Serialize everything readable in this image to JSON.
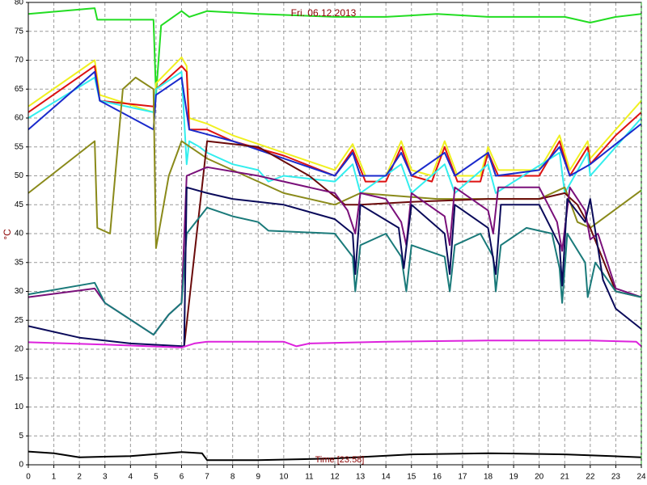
{
  "chart_data": {
    "type": "line",
    "title": "Fri. 06.12.2013",
    "y_label": "°C",
    "annotation": "Time [23:58]",
    "xlim": [
      0,
      24
    ],
    "ylim": [
      0,
      80
    ],
    "xticks": [
      0,
      1,
      2,
      3,
      4,
      5,
      6,
      7,
      8,
      9,
      10,
      11,
      12,
      13,
      14,
      15,
      16,
      17,
      18,
      19,
      20,
      21,
      22,
      23,
      24
    ],
    "yticks": [
      0,
      5,
      10,
      15,
      20,
      25,
      30,
      35,
      40,
      45,
      50,
      55,
      60,
      65,
      70,
      75,
      80
    ],
    "grid": true,
    "series": [
      {
        "color": "#22dd22",
        "x": [
          0,
          2.6,
          2.7,
          4.9,
          5.0,
          5.2,
          6.0,
          6.3,
          7,
          9,
          12,
          14,
          16,
          18,
          21,
          22,
          23,
          24
        ],
        "values": [
          78,
          79,
          77,
          77,
          64,
          76,
          78.5,
          77.5,
          78.5,
          78,
          77.5,
          77.5,
          78,
          77.5,
          77.5,
          76.5,
          77.5,
          78
        ]
      },
      {
        "color": "#f0f020",
        "x": [
          0,
          2.6,
          2.8,
          4.9,
          5.0,
          6.0,
          6.2,
          6.3,
          7,
          8,
          10,
          12,
          12.7,
          13.2,
          14,
          14.6,
          15,
          15.8,
          16.3,
          16.8,
          17.7,
          18,
          18.4,
          20,
          20.8,
          21.2,
          21.9,
          22,
          23,
          24
        ],
        "values": [
          62,
          70,
          64,
          61,
          66,
          70.5,
          69,
          60,
          59,
          57,
          54,
          51,
          55.5,
          50,
          50,
          56,
          51,
          50,
          56,
          50,
          50,
          55,
          51,
          51,
          57,
          51,
          56,
          53,
          58,
          63
        ]
      },
      {
        "color": "#dd1111",
        "x": [
          0,
          2.6,
          2.8,
          4.9,
          5.0,
          6.0,
          6.2,
          6.3,
          7,
          8,
          10,
          12,
          12.7,
          13.2,
          14,
          14.6,
          15,
          15.8,
          16.3,
          16.8,
          17.7,
          18,
          18.4,
          20,
          20.8,
          21.2,
          21.9,
          22,
          23,
          24
        ],
        "values": [
          61,
          69,
          63,
          62,
          65,
          69,
          68,
          58,
          58,
          56,
          53.5,
          50,
          54.5,
          49,
          49,
          55,
          50,
          49,
          55,
          49,
          49,
          54,
          50,
          50,
          56,
          50,
          55,
          52,
          57,
          61
        ]
      },
      {
        "color": "#33eeee",
        "x": [
          0,
          2.6,
          2.8,
          4.9,
          5.0,
          6.0,
          6.2,
          6.3,
          6.7,
          7,
          8,
          9,
          9.4,
          10,
          12,
          12.7,
          13,
          14.6,
          15,
          16.3,
          16.7,
          18,
          18.3,
          20.8,
          21,
          21.9,
          22,
          24
        ],
        "values": [
          60,
          67,
          63,
          61,
          65,
          68,
          52,
          56,
          55,
          54,
          52,
          51,
          49,
          50,
          49,
          52,
          47,
          52,
          47,
          52,
          47,
          52,
          47,
          54,
          47,
          54,
          50,
          60
        ]
      },
      {
        "color": "#1a2acc",
        "x": [
          0,
          2.6,
          2.8,
          4.9,
          5.0,
          6.0,
          6.3,
          8,
          10,
          12,
          12.7,
          13,
          14,
          14.6,
          15,
          16.3,
          16.7,
          18,
          18.3,
          20,
          20.8,
          21.2,
          22,
          24
        ],
        "values": [
          58,
          68,
          63,
          58,
          64,
          67,
          58,
          56,
          53,
          50,
          54,
          50,
          50,
          54,
          50,
          54,
          50,
          54,
          50,
          51,
          55,
          50,
          52,
          59
        ]
      },
      {
        "color": "#8a8a1a",
        "x": [
          0,
          2.6,
          2.7,
          3.2,
          3.7,
          4.2,
          4.9,
          5.0,
          5.5,
          6.0,
          7,
          10,
          12,
          13,
          16,
          20,
          21,
          21.5,
          22,
          24
        ],
        "values": [
          47,
          56,
          41,
          40,
          65,
          67,
          65,
          37.5,
          50,
          56,
          53,
          47,
          45,
          47,
          46,
          46,
          48,
          42,
          41,
          47.5
        ]
      },
      {
        "color": "#6a0a0a",
        "x": [
          6.1,
          7,
          9,
          11,
          12.4,
          13,
          15,
          18,
          20,
          21,
          21.5,
          22,
          23,
          24
        ],
        "values": [
          20.5,
          56,
          55,
          50,
          45,
          45,
          45.5,
          46,
          46,
          47,
          45,
          41,
          30,
          29
        ]
      },
      {
        "color": "#7a107a",
        "x": [
          0,
          2.6,
          3,
          4.9,
          5.5,
          6.0,
          6.2,
          7,
          9,
          11,
          12,
          12.5,
          12.8,
          13,
          14,
          14.6,
          14.8,
          15,
          16.3,
          16.5,
          16.7,
          18,
          18.2,
          18.4,
          20,
          20.7,
          20.9,
          21.2,
          21.8,
          22.0,
          22.3,
          23,
          24
        ],
        "values": [
          29,
          30.5,
          28,
          22.5,
          26,
          28,
          50,
          51.5,
          50,
          48,
          47,
          44,
          40,
          47,
          46,
          42,
          38,
          47,
          43,
          38,
          48,
          44,
          40,
          48,
          48,
          42,
          37,
          48,
          44,
          39,
          40,
          30.5,
          29
        ]
      },
      {
        "color": "#1a7a7a",
        "x": [
          0,
          2.6,
          3,
          4.9,
          5.5,
          6.0,
          6.2,
          7,
          8,
          9,
          9.4,
          12,
          12.7,
          12.8,
          13,
          14,
          14.6,
          14.8,
          15,
          16.3,
          16.5,
          16.7,
          17.7,
          18.2,
          18.3,
          18.5,
          19.5,
          20.5,
          20.8,
          20.9,
          21.1,
          21.8,
          21.9,
          22.2,
          23,
          24
        ],
        "values": [
          29.5,
          31.5,
          28,
          22.5,
          26,
          28,
          40,
          44.5,
          43,
          42,
          40.5,
          40,
          36,
          30,
          38,
          40,
          36,
          30,
          38,
          36,
          30,
          38,
          40,
          36,
          30,
          38,
          41,
          40,
          34,
          28,
          40,
          35,
          29,
          35,
          30,
          29
        ]
      },
      {
        "color": "#0a0a5a",
        "x": [
          0,
          2,
          4,
          6.1,
          6.2,
          7,
          8,
          10,
          12,
          12.7,
          12.8,
          13,
          14.5,
          14.7,
          15,
          16.3,
          16.5,
          16.7,
          18,
          18.3,
          18.5,
          20,
          20.8,
          20.9,
          21.1,
          21.8,
          22,
          22.5,
          23,
          24
        ],
        "values": [
          24,
          22,
          21,
          20.5,
          48,
          47,
          46,
          45,
          42.5,
          40,
          33,
          45,
          41,
          34,
          45,
          40,
          33,
          45,
          41,
          33,
          45,
          45,
          38,
          31,
          46,
          42,
          46,
          32,
          27,
          23.5
        ]
      },
      {
        "color": "#dd22dd",
        "x": [
          0,
          3,
          6,
          6.5,
          7,
          10,
          10.5,
          11,
          14,
          18,
          22,
          23.8,
          24
        ],
        "values": [
          21.2,
          20.8,
          20.3,
          21,
          21.3,
          21.3,
          20.5,
          21,
          21.3,
          21.5,
          21.5,
          21.3,
          20.5
        ]
      },
      {
        "color": "#000000",
        "x": [
          0,
          1,
          2,
          4,
          6,
          6.8,
          7,
          9,
          12,
          15,
          18,
          21,
          24
        ],
        "values": [
          2.3,
          2,
          1.3,
          1.5,
          2.2,
          2,
          0.8,
          0.8,
          1.1,
          1.8,
          2,
          1.8,
          1.3
        ]
      }
    ]
  }
}
